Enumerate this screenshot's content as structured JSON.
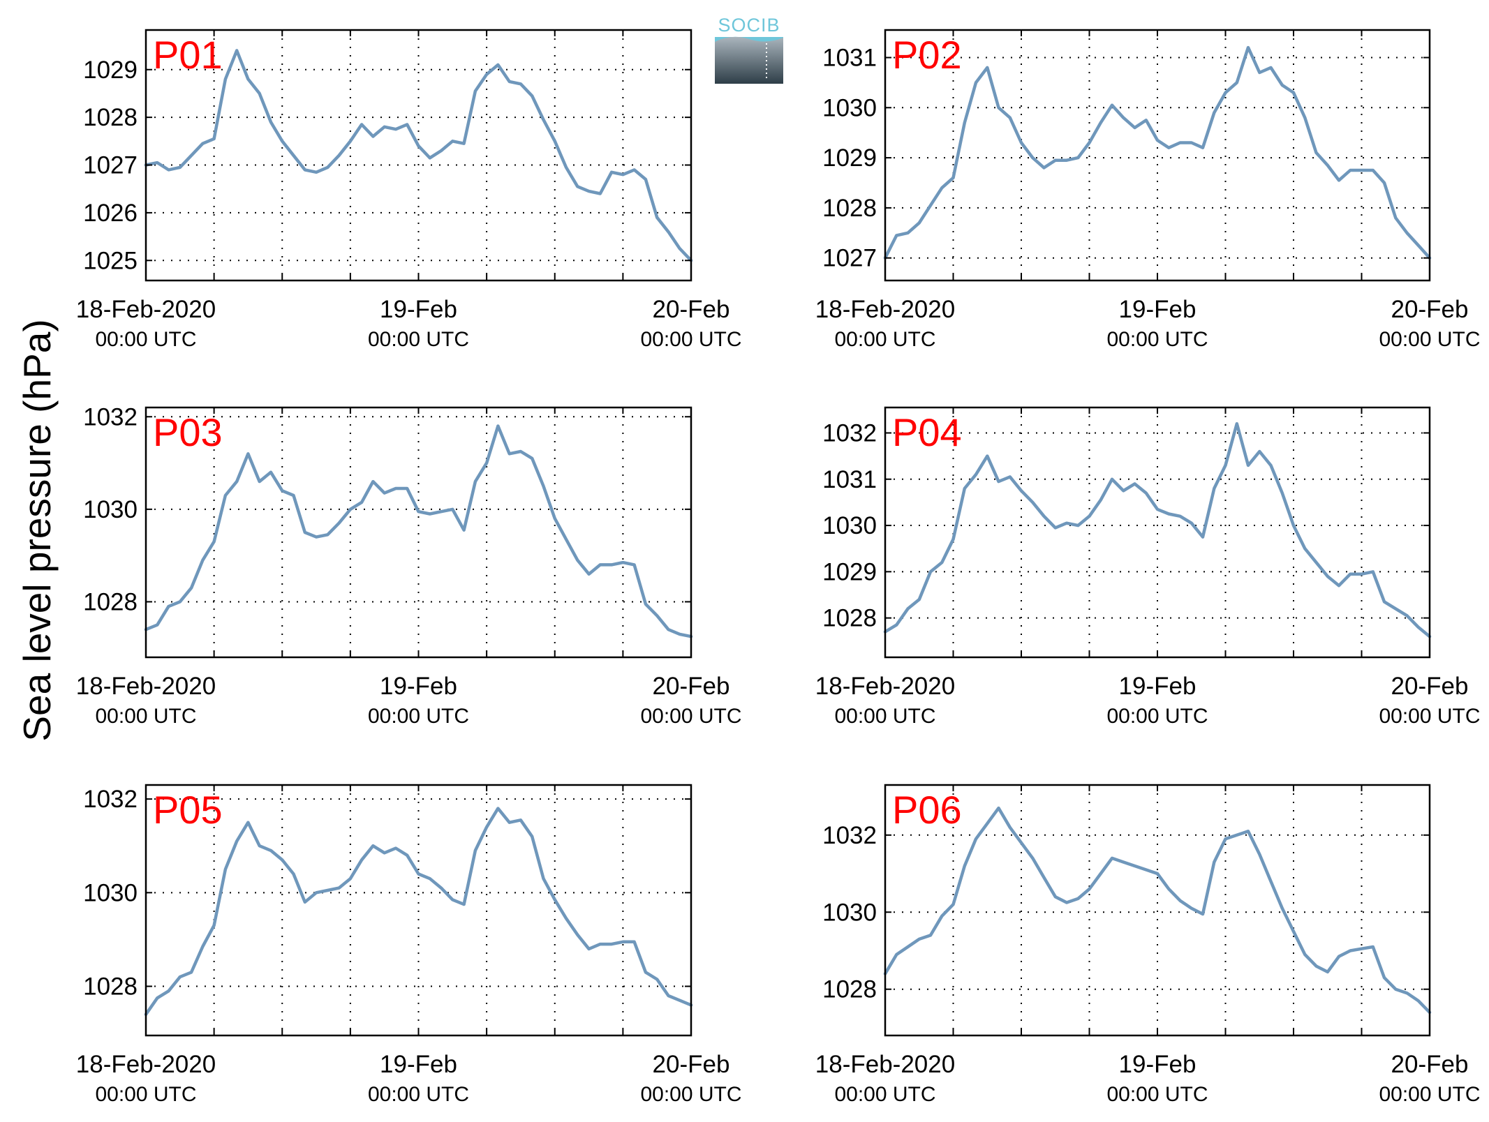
{
  "figure": {
    "ylabel": "Sea level pressure (hPa)",
    "logo_text": "SOCIB",
    "colors": {
      "series": "#6f97bb",
      "panel_label": "#ff0000",
      "logo_text": "#6ec6da",
      "logo_top": "#aab5bd",
      "logo_bottom": "#2e3e48"
    }
  },
  "chart_data": [
    {
      "type": "line",
      "title": "P01",
      "x_range": [
        "2020-02-18 00:00 UTC",
        "2020-02-20 00:00 UTC"
      ],
      "x_ticks": [
        {
          "line1": "18-Feb-2020",
          "line2": "00:00 UTC"
        },
        {
          "line1": "19-Feb",
          "line2": "00:00 UTC"
        },
        {
          "line1": "20-Feb",
          "line2": "00:00 UTC"
        }
      ],
      "ylim": [
        1024.58,
        1029.83
      ],
      "yticks": [
        1025,
        1026,
        1027,
        1028,
        1029
      ],
      "grid": true,
      "x_hours": [
        0,
        1,
        2,
        3,
        4,
        5,
        6,
        7,
        8,
        9,
        10,
        11,
        12,
        13,
        14,
        15,
        16,
        17,
        18,
        19,
        20,
        21,
        22,
        23,
        24,
        25,
        26,
        27,
        28,
        29,
        30,
        31,
        32,
        33,
        34,
        35,
        36,
        37,
        38,
        39,
        40,
        41,
        42,
        43,
        44,
        45,
        46,
        47,
        48
      ],
      "values": [
        1027.0,
        1027.05,
        1026.9,
        1026.95,
        1027.2,
        1027.45,
        1027.55,
        1028.8,
        1029.4,
        1028.8,
        1028.5,
        1027.9,
        1027.5,
        1027.2,
        1026.9,
        1026.85,
        1026.95,
        1027.2,
        1027.5,
        1027.85,
        1027.6,
        1027.8,
        1027.75,
        1027.85,
        1027.4,
        1027.15,
        1027.3,
        1027.5,
        1027.45,
        1028.55,
        1028.9,
        1029.1,
        1028.75,
        1028.7,
        1028.45,
        1027.95,
        1027.5,
        1026.95,
        1026.55,
        1026.45,
        1026.4,
        1026.85,
        1026.8,
        1026.9,
        1026.7,
        1025.9,
        1025.6,
        1025.25,
        1025.0
      ]
    },
    {
      "type": "line",
      "title": "P02",
      "x_range": [
        "2020-02-18 00:00 UTC",
        "2020-02-20 00:00 UTC"
      ],
      "x_ticks": [
        {
          "line1": "18-Feb-2020",
          "line2": "00:00 UTC"
        },
        {
          "line1": "19-Feb",
          "line2": "00:00 UTC"
        },
        {
          "line1": "20-Feb",
          "line2": "00:00 UTC"
        }
      ],
      "ylim": [
        1026.55,
        1031.55
      ],
      "yticks": [
        1027,
        1028,
        1029,
        1030,
        1031
      ],
      "grid": true,
      "x_hours": [
        0,
        1,
        2,
        3,
        4,
        5,
        6,
        7,
        8,
        9,
        10,
        11,
        12,
        13,
        14,
        15,
        16,
        17,
        18,
        19,
        20,
        21,
        22,
        23,
        24,
        25,
        26,
        27,
        28,
        29,
        30,
        31,
        32,
        33,
        34,
        35,
        36,
        37,
        38,
        39,
        40,
        41,
        42,
        43,
        44,
        45,
        46,
        47,
        48
      ],
      "values": [
        1027.0,
        1027.45,
        1027.5,
        1027.7,
        1028.05,
        1028.4,
        1028.6,
        1029.7,
        1030.5,
        1030.8,
        1030.0,
        1029.8,
        1029.3,
        1029.0,
        1028.8,
        1028.95,
        1028.95,
        1029.0,
        1029.3,
        1029.7,
        1030.05,
        1029.8,
        1029.6,
        1029.75,
        1029.35,
        1029.2,
        1029.3,
        1029.3,
        1029.2,
        1029.9,
        1030.3,
        1030.5,
        1031.2,
        1030.7,
        1030.8,
        1030.45,
        1030.3,
        1029.8,
        1029.1,
        1028.85,
        1028.55,
        1028.75,
        1028.75,
        1028.75,
        1028.5,
        1027.8,
        1027.5,
        1027.25,
        1027.0
      ]
    },
    {
      "type": "line",
      "title": "P03",
      "x_range": [
        "2020-02-18 00:00 UTC",
        "2020-02-20 00:00 UTC"
      ],
      "x_ticks": [
        {
          "line1": "18-Feb-2020",
          "line2": "00:00 UTC"
        },
        {
          "line1": "19-Feb",
          "line2": "00:00 UTC"
        },
        {
          "line1": "20-Feb",
          "line2": "00:00 UTC"
        }
      ],
      "ylim": [
        1026.8,
        1032.2
      ],
      "yticks": [
        1028,
        1030,
        1032
      ],
      "grid": true,
      "x_hours": [
        0,
        1,
        2,
        3,
        4,
        5,
        6,
        7,
        8,
        9,
        10,
        11,
        12,
        13,
        14,
        15,
        16,
        17,
        18,
        19,
        20,
        21,
        22,
        23,
        24,
        25,
        26,
        27,
        28,
        29,
        30,
        31,
        32,
        33,
        34,
        35,
        36,
        37,
        38,
        39,
        40,
        41,
        42,
        43,
        44,
        45,
        46,
        47,
        48
      ],
      "values": [
        1027.4,
        1027.5,
        1027.9,
        1028.0,
        1028.3,
        1028.9,
        1029.3,
        1030.3,
        1030.6,
        1031.2,
        1030.6,
        1030.8,
        1030.4,
        1030.3,
        1029.5,
        1029.4,
        1029.45,
        1029.7,
        1030.0,
        1030.15,
        1030.6,
        1030.35,
        1030.45,
        1030.45,
        1029.95,
        1029.9,
        1029.95,
        1030.0,
        1029.55,
        1030.6,
        1031.0,
        1031.8,
        1031.2,
        1031.25,
        1031.1,
        1030.5,
        1029.8,
        1029.35,
        1028.9,
        1028.6,
        1028.8,
        1028.8,
        1028.85,
        1028.8,
        1027.95,
        1027.7,
        1027.4,
        1027.3,
        1027.25
      ]
    },
    {
      "type": "line",
      "title": "P04",
      "x_range": [
        "2020-02-18 00:00 UTC",
        "2020-02-20 00:00 UTC"
      ],
      "x_ticks": [
        {
          "line1": "18-Feb-2020",
          "line2": "00:00 UTC"
        },
        {
          "line1": "19-Feb",
          "line2": "00:00 UTC"
        },
        {
          "line1": "20-Feb",
          "line2": "00:00 UTC"
        }
      ],
      "ylim": [
        1027.15,
        1032.55
      ],
      "yticks": [
        1028,
        1029,
        1030,
        1031,
        1032
      ],
      "grid": true,
      "x_hours": [
        0,
        1,
        2,
        3,
        4,
        5,
        6,
        7,
        8,
        9,
        10,
        11,
        12,
        13,
        14,
        15,
        16,
        17,
        18,
        19,
        20,
        21,
        22,
        23,
        24,
        25,
        26,
        27,
        28,
        29,
        30,
        31,
        32,
        33,
        34,
        35,
        36,
        37,
        38,
        39,
        40,
        41,
        42,
        43,
        44,
        45,
        46,
        47,
        48
      ],
      "values": [
        1027.7,
        1027.85,
        1028.2,
        1028.4,
        1029.0,
        1029.2,
        1029.7,
        1030.8,
        1031.1,
        1031.5,
        1030.95,
        1031.05,
        1030.75,
        1030.5,
        1030.2,
        1029.95,
        1030.05,
        1030.0,
        1030.2,
        1030.55,
        1031.0,
        1030.75,
        1030.9,
        1030.7,
        1030.35,
        1030.25,
        1030.2,
        1030.05,
        1029.75,
        1030.8,
        1031.3,
        1032.2,
        1031.3,
        1031.6,
        1031.3,
        1030.7,
        1030.0,
        1029.5,
        1029.2,
        1028.9,
        1028.7,
        1028.95,
        1028.95,
        1029.0,
        1028.35,
        1028.2,
        1028.05,
        1027.8,
        1027.6
      ]
    },
    {
      "type": "line",
      "title": "P05",
      "x_range": [
        "2020-02-18 00:00 UTC",
        "2020-02-20 00:00 UTC"
      ],
      "x_ticks": [
        {
          "line1": "18-Feb-2020",
          "line2": "00:00 UTC"
        },
        {
          "line1": "19-Feb",
          "line2": "00:00 UTC"
        },
        {
          "line1": "20-Feb",
          "line2": "00:00 UTC"
        }
      ],
      "ylim": [
        1026.95,
        1032.3
      ],
      "yticks": [
        1028,
        1030,
        1032
      ],
      "grid": true,
      "x_hours": [
        0,
        1,
        2,
        3,
        4,
        5,
        6,
        7,
        8,
        9,
        10,
        11,
        12,
        13,
        14,
        15,
        16,
        17,
        18,
        19,
        20,
        21,
        22,
        23,
        24,
        25,
        26,
        27,
        28,
        29,
        30,
        31,
        32,
        33,
        34,
        35,
        36,
        37,
        38,
        39,
        40,
        41,
        42,
        43,
        44,
        45,
        46,
        47,
        48
      ],
      "values": [
        1027.4,
        1027.75,
        1027.9,
        1028.2,
        1028.3,
        1028.85,
        1029.3,
        1030.5,
        1031.1,
        1031.5,
        1031.0,
        1030.9,
        1030.7,
        1030.4,
        1029.8,
        1030.0,
        1030.05,
        1030.1,
        1030.3,
        1030.7,
        1031.0,
        1030.85,
        1030.95,
        1030.8,
        1030.4,
        1030.3,
        1030.1,
        1029.85,
        1029.75,
        1030.9,
        1031.4,
        1031.8,
        1031.5,
        1031.55,
        1031.2,
        1030.3,
        1029.85,
        1029.45,
        1029.1,
        1028.8,
        1028.9,
        1028.9,
        1028.95,
        1028.95,
        1028.3,
        1028.15,
        1027.8,
        1027.7,
        1027.6
      ]
    },
    {
      "type": "line",
      "title": "P06",
      "x_range": [
        "2020-02-18 00:00 UTC",
        "2020-02-20 00:00 UTC"
      ],
      "x_ticks": [
        {
          "line1": "18-Feb-2020",
          "line2": "00:00 UTC"
        },
        {
          "line1": "19-Feb",
          "line2": "00:00 UTC"
        },
        {
          "line1": "20-Feb",
          "line2": "00:00 UTC"
        }
      ],
      "ylim": [
        1026.8,
        1033.3
      ],
      "yticks": [
        1028,
        1030,
        1032
      ],
      "grid": true,
      "x_hours": [
        0,
        1,
        2,
        3,
        4,
        5,
        6,
        7,
        8,
        9,
        10,
        11,
        12,
        13,
        14,
        15,
        16,
        17,
        18,
        19,
        20,
        21,
        22,
        23,
        24,
        25,
        26,
        27,
        28,
        29,
        30,
        31,
        32,
        33,
        34,
        35,
        36,
        37,
        38,
        39,
        40,
        41,
        42,
        43,
        44,
        45,
        46,
        47,
        48
      ],
      "values": [
        1028.4,
        1028.9,
        1029.1,
        1029.3,
        1029.4,
        1029.9,
        1030.2,
        1031.2,
        1031.9,
        1032.3,
        1032.7,
        1032.2,
        1031.8,
        1031.4,
        1030.9,
        1030.4,
        1030.25,
        1030.35,
        1030.6,
        1031.0,
        1031.4,
        1031.3,
        1031.2,
        1031.1,
        1031.0,
        1030.6,
        1030.3,
        1030.1,
        1029.95,
        1031.3,
        1031.9,
        1032.0,
        1032.1,
        1031.5,
        1030.8,
        1030.1,
        1029.5,
        1028.9,
        1028.6,
        1028.45,
        1028.85,
        1029.0,
        1029.05,
        1029.1,
        1028.3,
        1028.0,
        1027.9,
        1027.7,
        1027.4
      ]
    }
  ]
}
